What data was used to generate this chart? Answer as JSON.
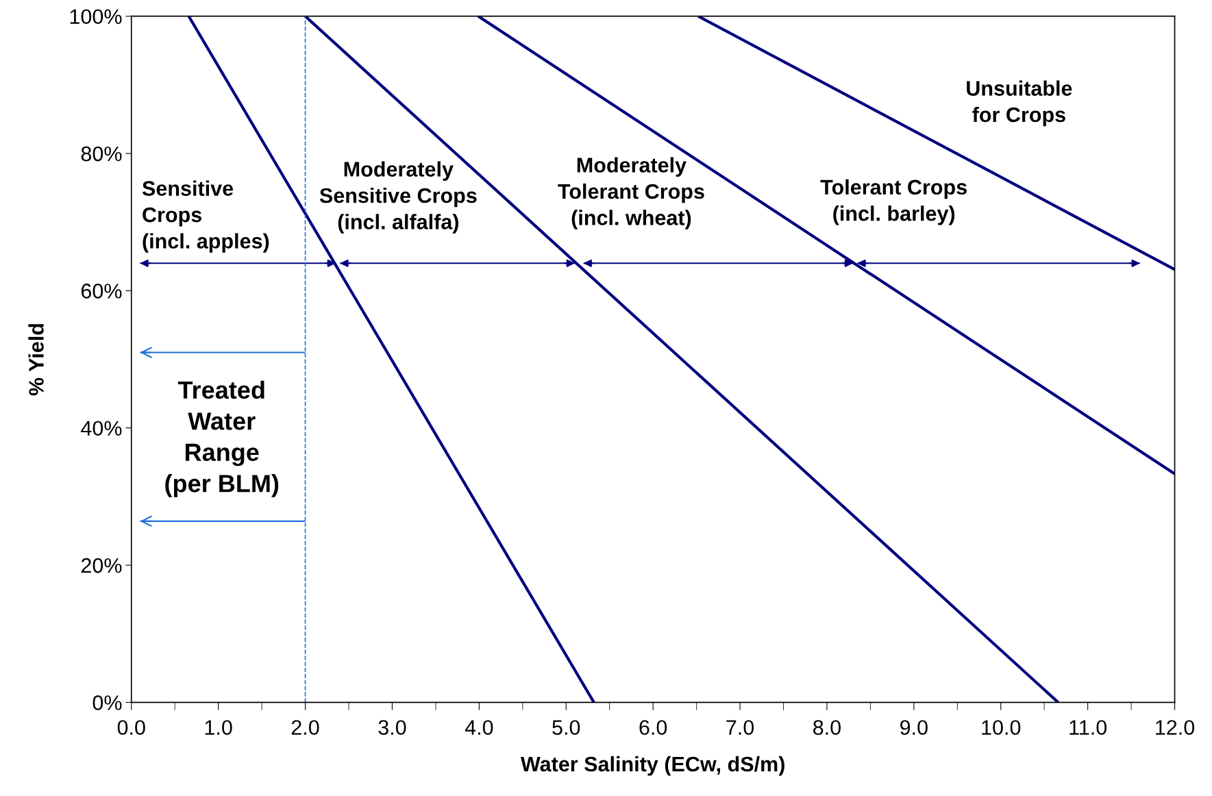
{
  "chart_data": {
    "type": "line",
    "xlabel": "Water Salinity (ECw, dS/m)",
    "ylabel": "% Yield",
    "xlim": [
      0,
      12
    ],
    "ylim": [
      0,
      100
    ],
    "xticks": [
      {
        "value": 0,
        "label": "0.0"
      },
      {
        "value": 1,
        "label": "1.0"
      },
      {
        "value": 2,
        "label": "2.0"
      },
      {
        "value": 3,
        "label": "3.0"
      },
      {
        "value": 4,
        "label": "4.0"
      },
      {
        "value": 5,
        "label": "5.0"
      },
      {
        "value": 6,
        "label": "6.0"
      },
      {
        "value": 7,
        "label": "7.0"
      },
      {
        "value": 8,
        "label": "8.0"
      },
      {
        "value": 9,
        "label": "9.0"
      },
      {
        "value": 10,
        "label": "10.0"
      },
      {
        "value": 11,
        "label": "11.0"
      },
      {
        "value": 12,
        "label": "12.0"
      }
    ],
    "yticks": [
      {
        "value": 0,
        "label": "0%"
      },
      {
        "value": 20,
        "label": "20%"
      },
      {
        "value": 40,
        "label": "40%"
      },
      {
        "value": 60,
        "label": "60%"
      },
      {
        "value": 80,
        "label": "80%"
      },
      {
        "value": 100,
        "label": "100%"
      }
    ],
    "grid": false,
    "line_style": "solid",
    "marker": "none",
    "series": [
      {
        "color": "#000080",
        "x": [
          0.66,
          5.32
        ],
        "values": [
          100,
          0
        ]
      },
      {
        "color": "#000080",
        "x": [
          2.0,
          10.66
        ],
        "values": [
          100,
          0
        ]
      },
      {
        "color": "#000080",
        "x": [
          3.99,
          12.0
        ],
        "values": [
          100,
          33.3
        ]
      },
      {
        "color": "#000080",
        "x": [
          6.52,
          12.0
        ],
        "values": [
          100,
          63.1
        ]
      },
      {
        "color": "#000080",
        "x": [
          0.1,
          2.35
        ],
        "values": [
          64,
          64
        ]
      },
      {
        "color": "#000080",
        "x": [
          2.4,
          5.1
        ],
        "values": [
          64,
          64
        ]
      },
      {
        "color": "#000080",
        "x": [
          5.2,
          8.3
        ],
        "values": [
          64,
          64
        ]
      },
      {
        "color": "#000080",
        "x": [
          8.35,
          11.6
        ],
        "values": [
          64,
          64
        ]
      },
      {
        "color": "#1f6fd6",
        "x": [
          2.0,
          0.1
        ],
        "values": [
          51,
          51
        ]
      },
      {
        "color": "#1f6fd6",
        "x": [
          2.0,
          0.1
        ],
        "values": [
          26.4,
          26.4
        ]
      }
    ],
    "ref_lines": [
      {
        "axis": "x",
        "value": 2.0,
        "color": "#1f6fd6",
        "line_style": "dashed"
      }
    ],
    "annotations": [
      "Sensitive\nCrops\n(incl. apples)",
      "Moderately\nSensitive Crops\n(incl. alfalfa)",
      "Moderately\nTolerant Crops\n(incl. wheat)",
      "Tolerant Crops\n(incl. barley)",
      "Unsuitable\nfor Crops",
      "Treated\nWater\nRange\n(per BLM)"
    ]
  }
}
